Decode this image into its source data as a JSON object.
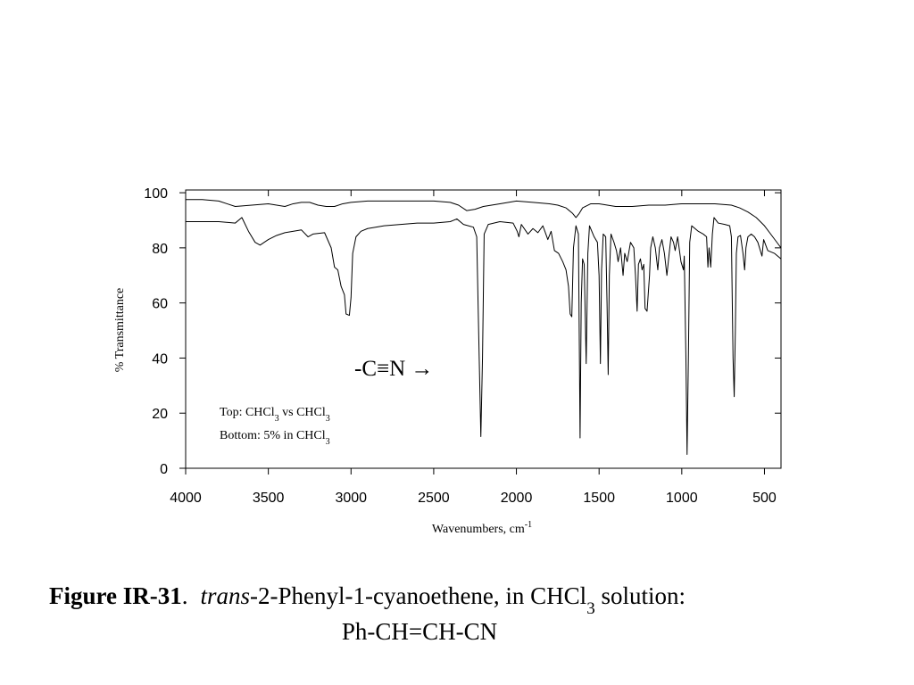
{
  "chart_data": {
    "type": "line",
    "y_label": "% Transmittance",
    "x_label": [
      "Wavenumbers, cm",
      "-1"
    ],
    "annotation": "-C≡N →",
    "notes": [
      [
        "Top: CHCl",
        "3",
        " vs CHCl",
        "3"
      ],
      [
        "Bottom: 5% in CHCl",
        "3"
      ]
    ],
    "caption": [
      "Figure IR-31",
      ".",
      "trans",
      "-2-Phenyl-1-cyanoethene, in CHCl",
      "3",
      " solution:",
      "Ph-CH=CH-CN"
    ],
    "xlim": [
      4000,
      400
    ],
    "xticks": [
      4000,
      3500,
      3000,
      2500,
      2000,
      1500,
      1000,
      500
    ],
    "ylim": [
      0,
      101
    ],
    "yticks": [
      0,
      20,
      40,
      60,
      80,
      100
    ],
    "series": [
      {
        "color": "#000000",
        "x": [
          4000,
          3900,
          3800,
          3750,
          3700,
          3600,
          3500,
          3450,
          3400,
          3350,
          3300,
          3250,
          3200,
          3150,
          3100,
          3050,
          3000,
          2900,
          2800,
          2700,
          2600,
          2500,
          2400,
          2350,
          2300,
          2250,
          2200,
          2100,
          2000,
          1900,
          1800,
          1750,
          1700,
          1660,
          1640,
          1620,
          1600,
          1550,
          1500,
          1400,
          1300,
          1200,
          1100,
          1000,
          900,
          800,
          700,
          650,
          600,
          550,
          500,
          450,
          400
        ],
        "values": [
          97.5,
          97.5,
          97,
          96,
          95,
          95.5,
          96,
          95.5,
          95,
          96,
          96.5,
          96.5,
          95.5,
          95,
          95,
          96,
          96.5,
          97,
          97,
          97,
          97,
          97,
          96.5,
          95.5,
          93.5,
          94,
          95,
          96,
          97,
          96.5,
          96,
          95.5,
          94.5,
          92.5,
          91,
          92.5,
          94.5,
          96,
          96,
          95,
          95,
          95.5,
          95.5,
          96,
          96,
          96,
          95.5,
          94.5,
          93,
          91,
          88,
          84,
          80
        ]
      },
      {
        "color": "#000000",
        "x": [
          4000,
          3800,
          3700,
          3660,
          3620,
          3580,
          3550,
          3500,
          3450,
          3400,
          3300,
          3260,
          3230,
          3160,
          3120,
          3100,
          3080,
          3060,
          3040,
          3030,
          3010,
          3000,
          2990,
          2970,
          2940,
          2900,
          2800,
          2700,
          2600,
          2500,
          2400,
          2360,
          2320,
          2260,
          2240,
          2225,
          2215,
          2205,
          2195,
          2170,
          2100,
          2020,
          1995,
          1985,
          1970,
          1930,
          1900,
          1870,
          1840,
          1810,
          1790,
          1770,
          1745,
          1720,
          1700,
          1685,
          1675,
          1665,
          1655,
          1640,
          1625,
          1615,
          1608,
          1600,
          1590,
          1578,
          1568,
          1558,
          1530,
          1510,
          1500,
          1492,
          1485,
          1475,
          1460,
          1452,
          1445,
          1438,
          1428,
          1410,
          1395,
          1385,
          1370,
          1355,
          1345,
          1330,
          1310,
          1290,
          1280,
          1270,
          1262,
          1250,
          1240,
          1230,
          1222,
          1210,
          1195,
          1188,
          1175,
          1160,
          1145,
          1135,
          1120,
          1105,
          1090,
          1078,
          1065,
          1050,
          1040,
          1025,
          1005,
          990,
          985,
          975,
          968,
          960,
          952,
          940,
          900,
          870,
          850,
          842,
          835,
          825,
          815,
          805,
          780,
          740,
          710,
          700,
          690,
          683,
          676,
          670,
          660,
          645,
          630,
          620,
          612,
          600,
          580,
          560,
          540,
          525,
          515,
          505,
          480,
          440,
          400
        ],
        "values": [
          89.5,
          89.5,
          89,
          91,
          86,
          82,
          81,
          83,
          84.5,
          85.5,
          86.5,
          84,
          85,
          85.5,
          80,
          73,
          72,
          66,
          63,
          56,
          55.5,
          62,
          78,
          84,
          86,
          87,
          88,
          88.5,
          89,
          89,
          89.5,
          90.5,
          88.5,
          87.5,
          84,
          40,
          11.5,
          40,
          85,
          88.5,
          89.5,
          89,
          86,
          84,
          88.5,
          85,
          87,
          85.5,
          88,
          83,
          86,
          79,
          78,
          75,
          72,
          66,
          56,
          55,
          80,
          88,
          85,
          11,
          60,
          76,
          74,
          38,
          78,
          88,
          84,
          82,
          70,
          38,
          72,
          85,
          84,
          60,
          34,
          70,
          85,
          82,
          79,
          75,
          80,
          70,
          78,
          75,
          82,
          80,
          70,
          57,
          74,
          76,
          72,
          74,
          58,
          57,
          70,
          80,
          84,
          80,
          72,
          80,
          83,
          78,
          70,
          77,
          84,
          82,
          79,
          84,
          75,
          72,
          77,
          40,
          5,
          40,
          82,
          88,
          86,
          85,
          84,
          73,
          80,
          73,
          85,
          91,
          89,
          88.5,
          88,
          84,
          40,
          26,
          50,
          78,
          84,
          84.5,
          78,
          72,
          80,
          84,
          85,
          84,
          82,
          79,
          77,
          83,
          79,
          78,
          76
        ]
      }
    ]
  }
}
